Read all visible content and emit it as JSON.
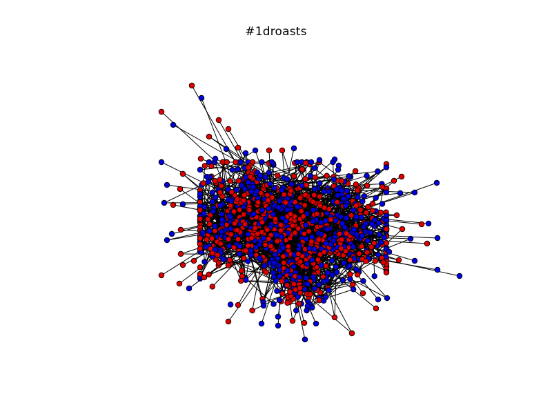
{
  "figure": {
    "title": "#1droasts"
  },
  "graph": {
    "type": "network",
    "node_colors": {
      "red": "#e00000",
      "blue": "#0000dd",
      "outline": "#000000",
      "edge": "#000000"
    },
    "layout": "force-directed",
    "node_count_estimate": 1200
  }
}
